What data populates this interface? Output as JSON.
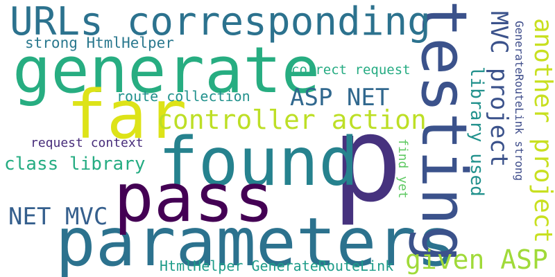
{
  "words": [
    {
      "text": "p",
      "color": "#46327e"
    },
    {
      "text": "found",
      "color": "#26828e"
    },
    {
      "text": "parameters",
      "color": "#2c728e"
    },
    {
      "text": "testing",
      "color": "#3b528b"
    },
    {
      "text": "generate",
      "color": "#27ad81"
    },
    {
      "text": "pass",
      "color": "#440154"
    },
    {
      "text": "far",
      "color": "#dde318"
    },
    {
      "text": "URLs corresponding",
      "color": "#2c728e"
    },
    {
      "text": "controller action",
      "color": "#bddf26"
    },
    {
      "text": "another project",
      "color": "#c8e020"
    },
    {
      "text": "MVC project",
      "color": "#3b528b"
    },
    {
      "text": "given ASP",
      "color": "#a0da39"
    },
    {
      "text": "ASP NET",
      "color": "#31688e"
    },
    {
      "text": "NET MVC",
      "color": "#355f8d"
    },
    {
      "text": "library used",
      "color": "#21918c"
    },
    {
      "text": "class library",
      "color": "#25ac82"
    },
    {
      "text": "strong HtmlHelper",
      "color": "#2a788e"
    },
    {
      "text": "route collection",
      "color": "#21918c"
    },
    {
      "text": "correct request",
      "color": "#25ab82"
    },
    {
      "text": "request context",
      "color": "#472c7a"
    },
    {
      "text": "HtmlHelper GenerateRouteLink",
      "color": "#1e9c89"
    },
    {
      "text": "GenerateRouteLink strong",
      "color": "#3e4c8a"
    },
    {
      "text": "find yet",
      "color": "#5ec962"
    }
  ]
}
